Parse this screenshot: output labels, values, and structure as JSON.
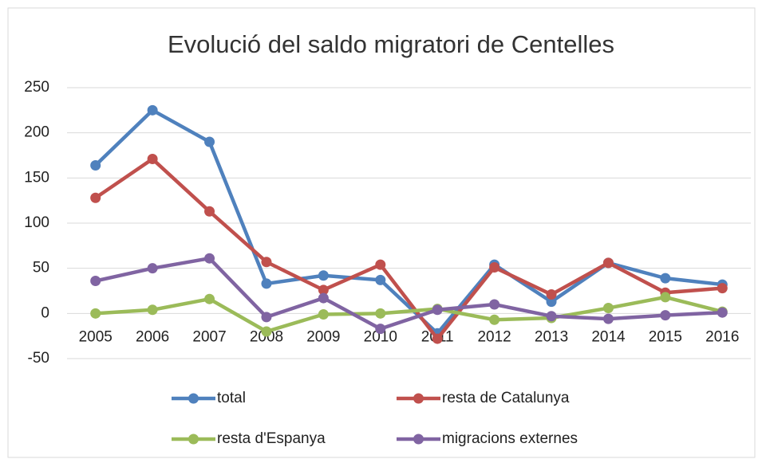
{
  "chart_data": {
    "type": "line",
    "title": "Evolució del saldo migratori de Centelles",
    "categories": [
      "2005",
      "2006",
      "2007",
      "2008",
      "2009",
      "2010",
      "2011",
      "2012",
      "2013",
      "2014",
      "2015",
      "2016"
    ],
    "series": [
      {
        "name": "total",
        "color": "#4f81bd",
        "values": [
          164,
          225,
          190,
          33,
          42,
          37,
          -22,
          54,
          13,
          56,
          39,
          32
        ]
      },
      {
        "name": "resta de Catalunya",
        "color": "#c0504d",
        "values": [
          128,
          171,
          113,
          57,
          26,
          54,
          -28,
          51,
          21,
          56,
          23,
          28
        ]
      },
      {
        "name": "resta d'Espanya",
        "color": "#9bbb59",
        "values": [
          0,
          4,
          16,
          -20,
          -1,
          0,
          5,
          -7,
          -5,
          6,
          18,
          2
        ]
      },
      {
        "name": "migracions externes",
        "color": "#8064a2",
        "values": [
          36,
          50,
          61,
          -4,
          17,
          -17,
          4,
          10,
          -3,
          -6,
          -2,
          1
        ]
      }
    ],
    "ylim": [
      -50,
      250
    ],
    "yticks": [
      -50,
      0,
      50,
      100,
      150,
      200,
      250
    ],
    "grid": true,
    "legend": "bottom"
  }
}
